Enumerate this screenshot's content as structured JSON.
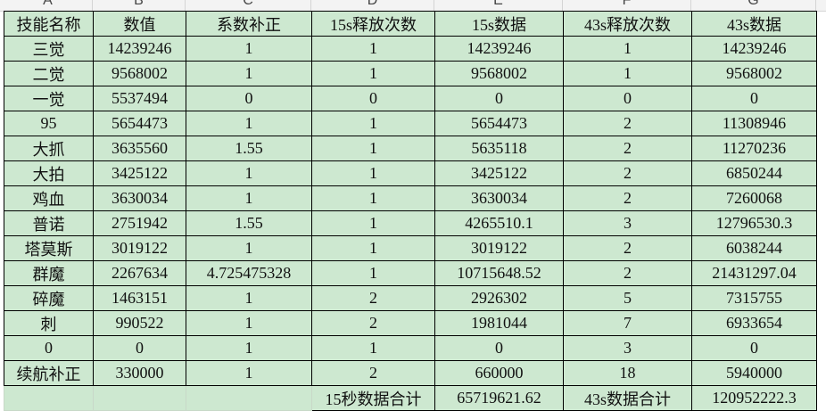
{
  "column_letters": [
    "A",
    "B",
    "C",
    "D",
    "E",
    "F",
    "G"
  ],
  "headers": [
    "技能名称",
    "数值",
    "系数补正",
    "15s释放次数",
    "15s数据",
    "43s释放次数",
    "43s数据"
  ],
  "rows": [
    [
      "三觉",
      "14239246",
      "1",
      "1",
      "14239246",
      "1",
      "14239246"
    ],
    [
      "二觉",
      "9568002",
      "1",
      "1",
      "9568002",
      "1",
      "9568002"
    ],
    [
      "一觉",
      "5537494",
      "0",
      "0",
      "0",
      "0",
      "0"
    ],
    [
      "95",
      "5654473",
      "1",
      "1",
      "5654473",
      "2",
      "11308946"
    ],
    [
      "大抓",
      "3635560",
      "1.55",
      "1",
      "5635118",
      "2",
      "11270236"
    ],
    [
      "大拍",
      "3425122",
      "1",
      "1",
      "3425122",
      "2",
      "6850244"
    ],
    [
      "鸡血",
      "3630034",
      "1",
      "1",
      "3630034",
      "2",
      "7260068"
    ],
    [
      "普诺",
      "2751942",
      "1.55",
      "1",
      "4265510.1",
      "3",
      "12796530.3"
    ],
    [
      "塔莫斯",
      "3019122",
      "1",
      "1",
      "3019122",
      "2",
      "6038244"
    ],
    [
      "群魔",
      "2267634",
      "4.725475328",
      "1",
      "10715648.52",
      "2",
      "21431297.04"
    ],
    [
      "碎魔",
      "1463151",
      "1",
      "2",
      "2926302",
      "5",
      "7315755"
    ],
    [
      "刺",
      "990522",
      "1",
      "2",
      "1981044",
      "7",
      "6933654"
    ],
    [
      "0",
      "0",
      "1",
      "1",
      "0",
      "3",
      "0"
    ],
    [
      "续航补正",
      "330000",
      "1",
      "2",
      "660000",
      "18",
      "5940000"
    ]
  ],
  "totals": {
    "label_15s": "15秒数据合计",
    "value_15s": "65719621.62",
    "label_43s": "43s数据合计",
    "value_43s": "120952222.3"
  },
  "colors": {
    "cell_fill": "#cde8d0",
    "border": "#000000"
  }
}
